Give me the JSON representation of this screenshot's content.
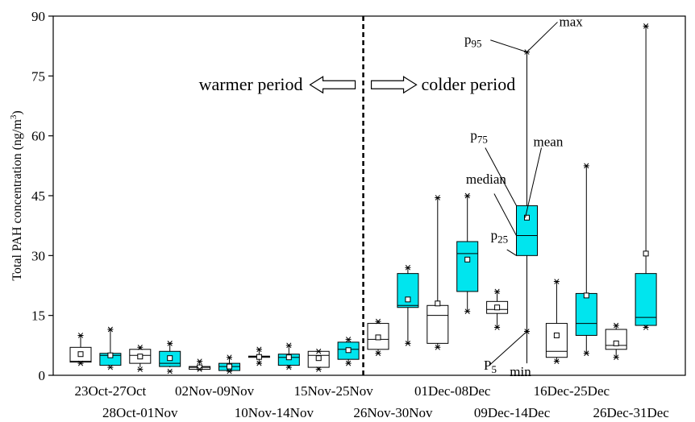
{
  "chart_data": {
    "type": "box",
    "ylabel": "Total PAH concentration (ng/m3)",
    "ylim": [
      0,
      90
    ],
    "yticks": [
      0,
      15,
      30,
      45,
      60,
      75,
      90
    ],
    "periods": {
      "left": "warmer period",
      "right": "colder period"
    },
    "colors": {
      "white": "#ffffff",
      "cyan": "#00e5ee",
      "edge": "#000000"
    },
    "annotations": {
      "p95": "p95",
      "max": "max",
      "p75": "p75",
      "mean": "mean",
      "median": "median",
      "p25": "p25",
      "p5": "P5",
      "min": "min"
    },
    "categories": [
      {
        "label": "23Oct-27Oct",
        "min": 3.0,
        "p5": 3.3,
        "p25": 3.3,
        "median": 3.5,
        "p75": 7.0,
        "p95": 10.0,
        "max": 10.0,
        "mean": 5.3,
        "color": "white"
      },
      {
        "label": "28Oct-01Nov",
        "min": 2.0,
        "p5": 2.5,
        "p25": 2.5,
        "median": 5.0,
        "p75": 5.5,
        "p95": 11.5,
        "max": 11.5,
        "mean": 5.0,
        "color": "cyan"
      },
      {
        "label": "",
        "min": 1.5,
        "p5": 2.0,
        "p25": 3.0,
        "median": 5.0,
        "p75": 6.5,
        "p95": 7.0,
        "max": 7.0,
        "mean": 4.7,
        "color": "white"
      },
      {
        "label": "02Nov-09Nov",
        "min": 1.0,
        "p5": 2.0,
        "p25": 2.2,
        "median": 3.0,
        "p75": 6.0,
        "p95": 8.0,
        "max": 8.0,
        "mean": 4.3,
        "color": "cyan"
      },
      {
        "label": "",
        "min": 1.5,
        "p5": 1.5,
        "p25": 1.5,
        "median": 2.0,
        "p75": 2.2,
        "p95": 3.5,
        "max": 3.5,
        "mean": 2.0,
        "color": "white"
      },
      {
        "label": "10Nov-14Nov",
        "min": 1.0,
        "p5": 1.0,
        "p25": 1.2,
        "median": 2.2,
        "p75": 3.0,
        "p95": 4.5,
        "max": 4.5,
        "mean": 2.2,
        "color": "cyan"
      },
      {
        "label": "",
        "min": 3.0,
        "p5": 3.0,
        "p25": 4.5,
        "median": 4.7,
        "p75": 4.8,
        "p95": 6.5,
        "max": 6.5,
        "mean": 4.6,
        "color": "white"
      },
      {
        "label": "15Nov-25Nov",
        "min": 2.0,
        "p5": 2.0,
        "p25": 2.5,
        "median": 4.5,
        "p75": 5.3,
        "p95": 7.5,
        "max": 7.5,
        "mean": 4.5,
        "color": "cyan"
      },
      {
        "label": "",
        "min": 1.5,
        "p5": 1.5,
        "p25": 2.0,
        "median": 5.0,
        "p75": 6.0,
        "p95": 6.0,
        "max": 6.0,
        "mean": 4.3,
        "color": "white"
      },
      {
        "label": "26Nov-30Nov",
        "min": 3.0,
        "p5": 3.0,
        "p25": 4.0,
        "median": 6.5,
        "p75": 8.3,
        "p95": 9.0,
        "max": 9.0,
        "mean": 6.3,
        "color": "cyan"
      },
      {
        "label": "",
        "min": 5.5,
        "p5": 5.5,
        "p25": 6.5,
        "median": 9.0,
        "p75": 13.0,
        "p95": 13.5,
        "max": 13.5,
        "mean": 9.5,
        "color": "white"
      },
      {
        "label": "01Dec-08Dec",
        "min": 8.0,
        "p5": 8.0,
        "p25": 17.0,
        "median": 17.5,
        "p75": 25.5,
        "p95": 27.0,
        "max": 27.0,
        "mean": 19.0,
        "color": "cyan"
      },
      {
        "label": "",
        "min": 7.0,
        "p5": 7.0,
        "p25": 8.0,
        "median": 15.0,
        "p75": 17.5,
        "p95": 44.5,
        "max": 44.5,
        "mean": 18.0,
        "color": "white"
      },
      {
        "label": "",
        "min": 16.0,
        "p5": 16.0,
        "p25": 21.0,
        "median": 30.5,
        "p75": 33.5,
        "p95": 45.0,
        "max": 45.0,
        "mean": 29.0,
        "color": "cyan"
      },
      {
        "label": "09Dec-14Dec",
        "min": 12.0,
        "p5": 12.0,
        "p25": 15.5,
        "median": 16.5,
        "p75": 18.5,
        "p95": 21.0,
        "max": 21.0,
        "mean": 17.0,
        "color": "white"
      },
      {
        "label": "",
        "min": 11.0,
        "p5": 11.0,
        "p25": 30.0,
        "median": 35.0,
        "p75": 42.5,
        "p95": 81.0,
        "max": 81.0,
        "mean": 39.5,
        "color": "cyan"
      },
      {
        "label": "16Dec-25Dec",
        "min": 3.5,
        "p5": 3.5,
        "p25": 4.5,
        "median": 6.0,
        "p75": 13.0,
        "p95": 23.5,
        "max": 23.5,
        "mean": 10.0,
        "color": "white"
      },
      {
        "label": "",
        "min": 5.5,
        "p5": 5.5,
        "p25": 10.0,
        "median": 13.0,
        "p75": 20.5,
        "p95": 52.5,
        "max": 52.5,
        "mean": 20.0,
        "color": "cyan"
      },
      {
        "label": "26Dec-31Dec",
        "min": 4.5,
        "p5": 4.5,
        "p25": 6.5,
        "median": 7.5,
        "p75": 11.5,
        "p95": 12.5,
        "max": 12.5,
        "mean": 8.0,
        "color": "white"
      },
      {
        "label": "",
        "min": 12.0,
        "p5": 12.0,
        "p25": 12.5,
        "median": 14.5,
        "p75": 25.5,
        "p95": 87.5,
        "max": 87.5,
        "mean": 30.5,
        "color": "cyan"
      }
    ],
    "xlabels": [
      {
        "text": "23Oct-27Oct",
        "row": 1,
        "index": 1
      },
      {
        "text": "28Oct-01Nov",
        "row": 2,
        "index": 2
      },
      {
        "text": "02Nov-09Nov",
        "row": 1,
        "index": 4.5
      },
      {
        "text": "10Nov-14Nov",
        "row": 2,
        "index": 6.5
      },
      {
        "text": "15Nov-25Nov",
        "row": 1,
        "index": 8.5
      },
      {
        "text": "26Nov-30Nov",
        "row": 2,
        "index": 10.5
      },
      {
        "text": "01Dec-08Dec",
        "row": 1,
        "index": 12.5
      },
      {
        "text": "09Dec-14Dec",
        "row": 2,
        "index": 14.5
      },
      {
        "text": "16Dec-25Dec",
        "row": 1,
        "index": 16.5
      },
      {
        "text": "26Dec-31Dec",
        "row": 2,
        "index": 18.5
      }
    ]
  }
}
